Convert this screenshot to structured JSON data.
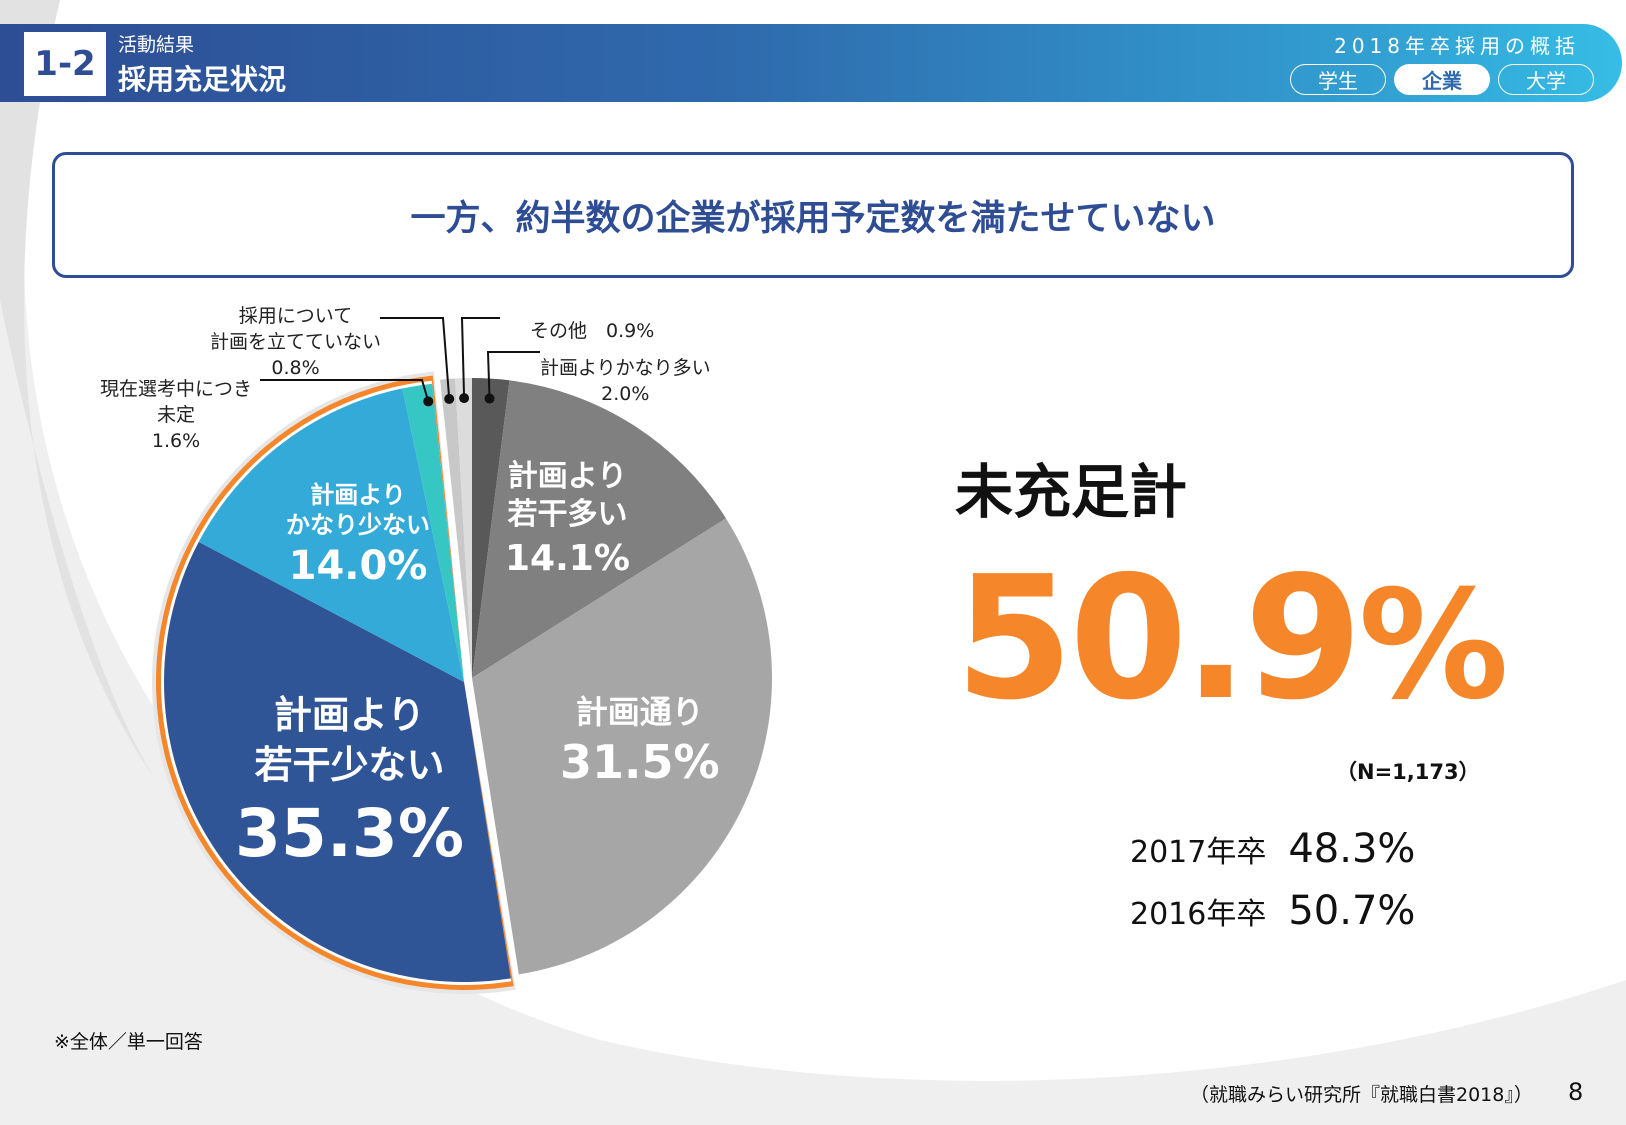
{
  "header": {
    "section_number": "1-2",
    "subtitle": "活動結果",
    "title": "採用充足状況",
    "right_title": "2018年卒採用の概括",
    "tabs": [
      {
        "label": "学生",
        "active": false
      },
      {
        "label": "企業",
        "active": true
      },
      {
        "label": "大学",
        "active": false
      }
    ]
  },
  "headline": "一方、約半数の企業が採用予定数を満たせていない",
  "chart_data": {
    "type": "pie",
    "title": "",
    "slices": [
      {
        "label": "計画よりかなり多い",
        "value": 2.0,
        "value_label": "2.0%",
        "color": "#595959"
      },
      {
        "label": "計画より若干多い",
        "value": 14.1,
        "value_label": "14.1%",
        "color": "#808080"
      },
      {
        "label": "計画通り",
        "value": 31.5,
        "value_label": "31.5%",
        "color": "#a6a6a6"
      },
      {
        "label": "計画より若干少ない",
        "value": 35.3,
        "value_label": "35.3%",
        "color": "#2f5597",
        "highlighted": true
      },
      {
        "label": "計画よりかなり少ない",
        "value": 14.0,
        "value_label": "14.0%",
        "color": "#33aad8",
        "highlighted": true
      },
      {
        "label": "現在選考中につき未定",
        "value": 1.6,
        "value_label": "1.6%",
        "color": "#36c7c4",
        "highlighted": true
      },
      {
        "label": "採用について計画を立てていない",
        "value": 0.8,
        "value_label": "0.8%",
        "color": "#c8c8c8"
      },
      {
        "label": "その他",
        "value": 0.9,
        "value_label": "0.9%",
        "color": "#dcdcdc"
      }
    ],
    "highlight_color": "#f5862a"
  },
  "labels": {
    "s0a": "計画よりかなり多い",
    "s0b": "2.0%",
    "s1a": "計画より",
    "s1b": "若干多い",
    "s1c": "14.1%",
    "s2a": "計画通り",
    "s2b": "31.5%",
    "s3a": "計画より",
    "s3b": "若干少ない",
    "s3c": "35.3%",
    "s4a": "計画より",
    "s4b": "かなり少ない",
    "s4c": "14.0%",
    "s5a": "現在選考中につき",
    "s5b": "未定",
    "s5c": "1.6%",
    "s6a": "採用について",
    "s6b": "計画を立てていない",
    "s6c": "0.8%",
    "s7": "その他　0.9%"
  },
  "summary": {
    "label": "未充足計",
    "value": "50.9",
    "unit": "%",
    "n": "（N=1,173）",
    "prev": [
      {
        "year": "2017年卒",
        "value": "48.3%"
      },
      {
        "year": "2016年卒",
        "value": "50.7%"
      }
    ]
  },
  "footnote": "※全体／単一回答",
  "source": "（就職みらい研究所『就職白書2018』）",
  "page": "8"
}
